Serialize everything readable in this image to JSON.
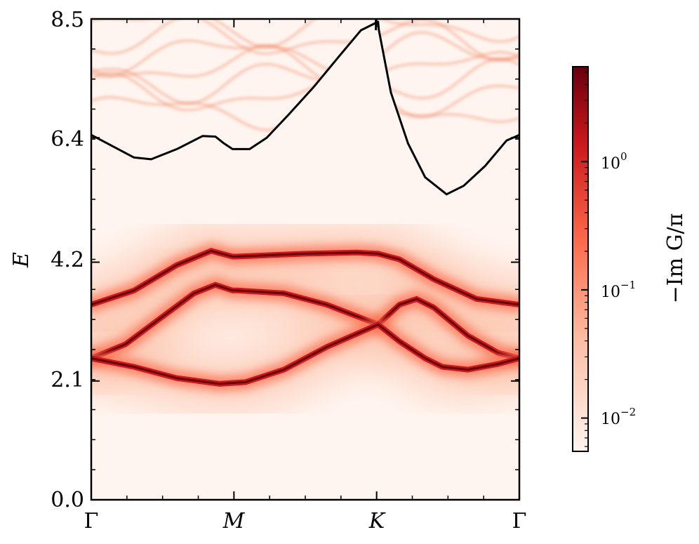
{
  "chart_data": {
    "type": "heatmap",
    "title": "",
    "ylabel": "E",
    "ylim": [
      0.0,
      8.5
    ],
    "y_ticks": [
      "0.0",
      "2.1",
      "4.2",
      "6.4",
      "8.5"
    ],
    "x_ticks": [
      "Γ",
      "M",
      "K",
      "Γ"
    ],
    "colorbar": {
      "label": "−Im G/π",
      "scale": "log",
      "ticks": [
        {
          "base": "10",
          "exp": "0",
          "value": 1
        },
        {
          "base": "10",
          "exp": "−1",
          "value": 0.1
        },
        {
          "base": "10",
          "exp": "−2",
          "value": 0.01
        }
      ],
      "range": [
        0.0055,
        5.5
      ],
      "colormap": "Reds",
      "colors": [
        "#fff5f0",
        "#fcbba1",
        "#fb6a4a",
        "#cb181d",
        "#67000d"
      ]
    },
    "boundary_curve": {
      "color": "#000000",
      "x": [
        0.0,
        0.05,
        0.1,
        0.14,
        0.2,
        0.26,
        0.29,
        0.31,
        0.33,
        0.37,
        0.41,
        0.46,
        0.52,
        0.58,
        0.63,
        0.67,
        0.672,
        0.7,
        0.74,
        0.78,
        0.83,
        0.87,
        0.92,
        0.97,
        1.0
      ],
      "y": [
        6.45,
        6.25,
        6.05,
        6.02,
        6.2,
        6.43,
        6.42,
        6.3,
        6.2,
        6.2,
        6.4,
        6.8,
        7.3,
        7.85,
        8.3,
        8.45,
        8.3,
        7.2,
        6.3,
        5.7,
        5.4,
        5.55,
        5.9,
        6.35,
        6.45
      ]
    },
    "bands": [
      {
        "name": "",
        "x": [
          0.0,
          0.1,
          0.2,
          0.28,
          0.33,
          0.34,
          0.5,
          0.62,
          0.67,
          0.72,
          0.8,
          0.9,
          1.0
        ],
        "y": [
          3.45,
          3.7,
          4.15,
          4.4,
          4.3,
          4.3,
          4.35,
          4.37,
          4.35,
          4.25,
          3.9,
          3.55,
          3.45
        ]
      },
      {
        "name": "",
        "x": [
          0.0,
          0.08,
          0.16,
          0.24,
          0.29,
          0.33,
          0.34,
          0.45,
          0.55,
          0.67,
          0.72,
          0.76,
          0.8,
          0.88,
          0.95,
          1.0
        ],
        "y": [
          2.5,
          2.75,
          3.2,
          3.65,
          3.8,
          3.7,
          3.7,
          3.65,
          3.45,
          3.1,
          3.45,
          3.55,
          3.4,
          2.9,
          2.6,
          2.5
        ]
      },
      {
        "name": "",
        "x": [
          0.0,
          0.1,
          0.2,
          0.3,
          0.36,
          0.45,
          0.55,
          0.67,
          0.72,
          0.78,
          0.82,
          0.88,
          0.95,
          1.0
        ],
        "y": [
          2.5,
          2.35,
          2.15,
          2.05,
          2.08,
          2.3,
          2.7,
          3.1,
          2.8,
          2.5,
          2.35,
          2.3,
          2.4,
          2.5
        ]
      }
    ],
    "upper_band_color": "#f08a6a"
  }
}
